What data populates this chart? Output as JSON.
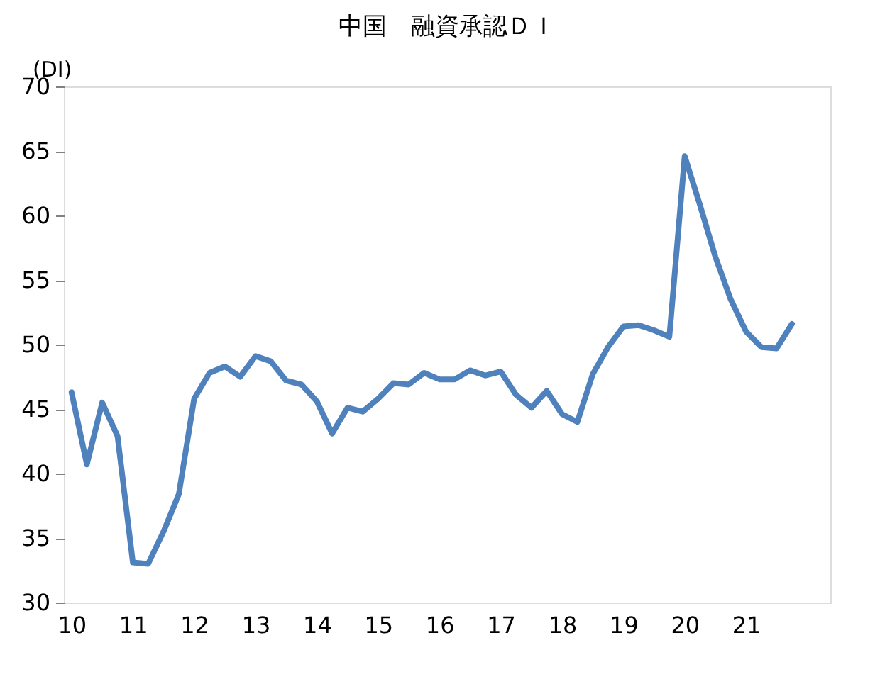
{
  "chart_data": {
    "type": "line",
    "title": "中国　融資承認ＤＩ",
    "ylabel": "(DI)",
    "x": [
      2010,
      2010.25,
      2010.5,
      2010.75,
      2011,
      2011.25,
      2011.5,
      2011.75,
      2012,
      2012.25,
      2012.5,
      2012.75,
      2013,
      2013.25,
      2013.5,
      2013.75,
      2014,
      2014.25,
      2014.5,
      2014.75,
      2015,
      2015.25,
      2015.5,
      2015.75,
      2016,
      2016.25,
      2016.5,
      2016.75,
      2017,
      2017.25,
      2017.5,
      2017.75,
      2018,
      2018.25,
      2018.5,
      2018.75,
      2019,
      2019.25,
      2019.5,
      2019.75,
      2020,
      2020.25,
      2020.5,
      2020.75,
      2021,
      2021.25,
      2021.5,
      2021.75
    ],
    "series": [
      {
        "color": "#4f81bd",
        "values": [
          46.3,
          40.7,
          45.5,
          42.9,
          33.1,
          33.0,
          35.5,
          38.4,
          45.8,
          47.8,
          48.3,
          47.5,
          49.1,
          48.7,
          47.2,
          46.9,
          45.6,
          43.1,
          45.1,
          44.8,
          45.8,
          47.0,
          46.9,
          47.8,
          47.3,
          47.3,
          48.0,
          47.6,
          47.9,
          46.1,
          45.1,
          46.4,
          44.6,
          44.0,
          47.7,
          49.8,
          51.4,
          51.5,
          51.1,
          50.6,
          64.6,
          60.8,
          56.8,
          53.5,
          51.0,
          49.8,
          49.7,
          51.6
        ]
      }
    ],
    "xlim": [
      2009.875,
      2022.375
    ],
    "xticks": [
      {
        "value": 2010,
        "label": "10"
      },
      {
        "value": 2011,
        "label": "11"
      },
      {
        "value": 2012,
        "label": "12"
      },
      {
        "value": 2013,
        "label": "13"
      },
      {
        "value": 2014,
        "label": "14"
      },
      {
        "value": 2015,
        "label": "15"
      },
      {
        "value": 2016,
        "label": "16"
      },
      {
        "value": 2017,
        "label": "17"
      },
      {
        "value": 2018,
        "label": "18"
      },
      {
        "value": 2019,
        "label": "19"
      },
      {
        "value": 2020,
        "label": "20"
      },
      {
        "value": 2021,
        "label": "21"
      }
    ],
    "ylim": [
      30,
      70
    ],
    "yticks": [
      30,
      35,
      40,
      45,
      50,
      55,
      60,
      65,
      70
    ],
    "grid": false,
    "legend": false,
    "marker": "none",
    "line_style": "solid"
  }
}
